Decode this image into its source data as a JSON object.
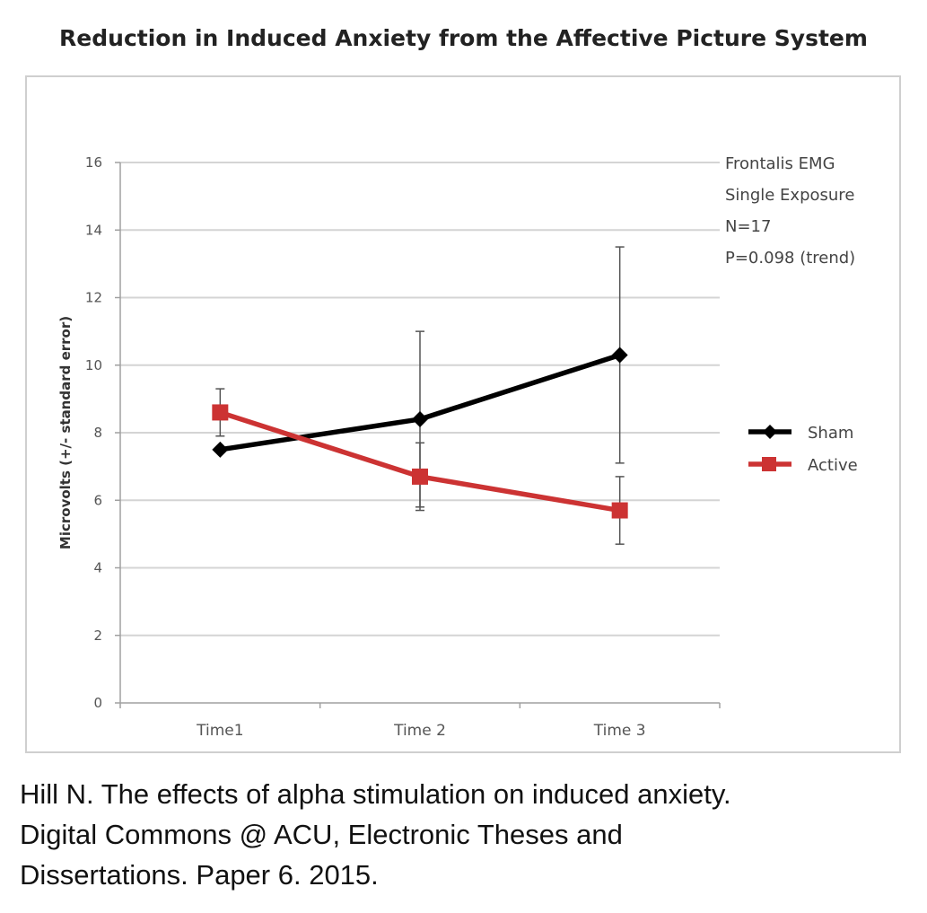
{
  "chart_data": {
    "type": "line",
    "title": "Reduction in Induced Anxiety from the Affective Picture System",
    "ylabel": "Microvolts (+/- standard error)",
    "xlabel": "",
    "categories": [
      "Time1",
      "Time 2",
      "Time 3"
    ],
    "ylim": [
      0,
      16
    ],
    "yticks": [
      0,
      2,
      4,
      6,
      8,
      10,
      12,
      14,
      16
    ],
    "grid": true,
    "legend_position": "right",
    "series": [
      {
        "name": "Sham",
        "color": "#000000",
        "marker": "diamond",
        "values": [
          7.5,
          8.4,
          10.3
        ],
        "error": [
          0.0,
          2.6,
          3.2
        ]
      },
      {
        "name": "Active",
        "color": "#cc3333",
        "marker": "square",
        "values": [
          8.6,
          6.7,
          5.7
        ],
        "error": [
          0.7,
          1.0,
          1.0
        ]
      }
    ],
    "annotations": [
      "Frontalis EMG",
      "Single Exposure",
      "N=17",
      "P=0.098 (trend)"
    ]
  },
  "caption": [
    "Hill N. The effects of alpha stimulation on induced anxiety.",
    "Digital Commons @ ACU, Electronic Theses and",
    "Dissertations. Paper 6. 2015."
  ]
}
